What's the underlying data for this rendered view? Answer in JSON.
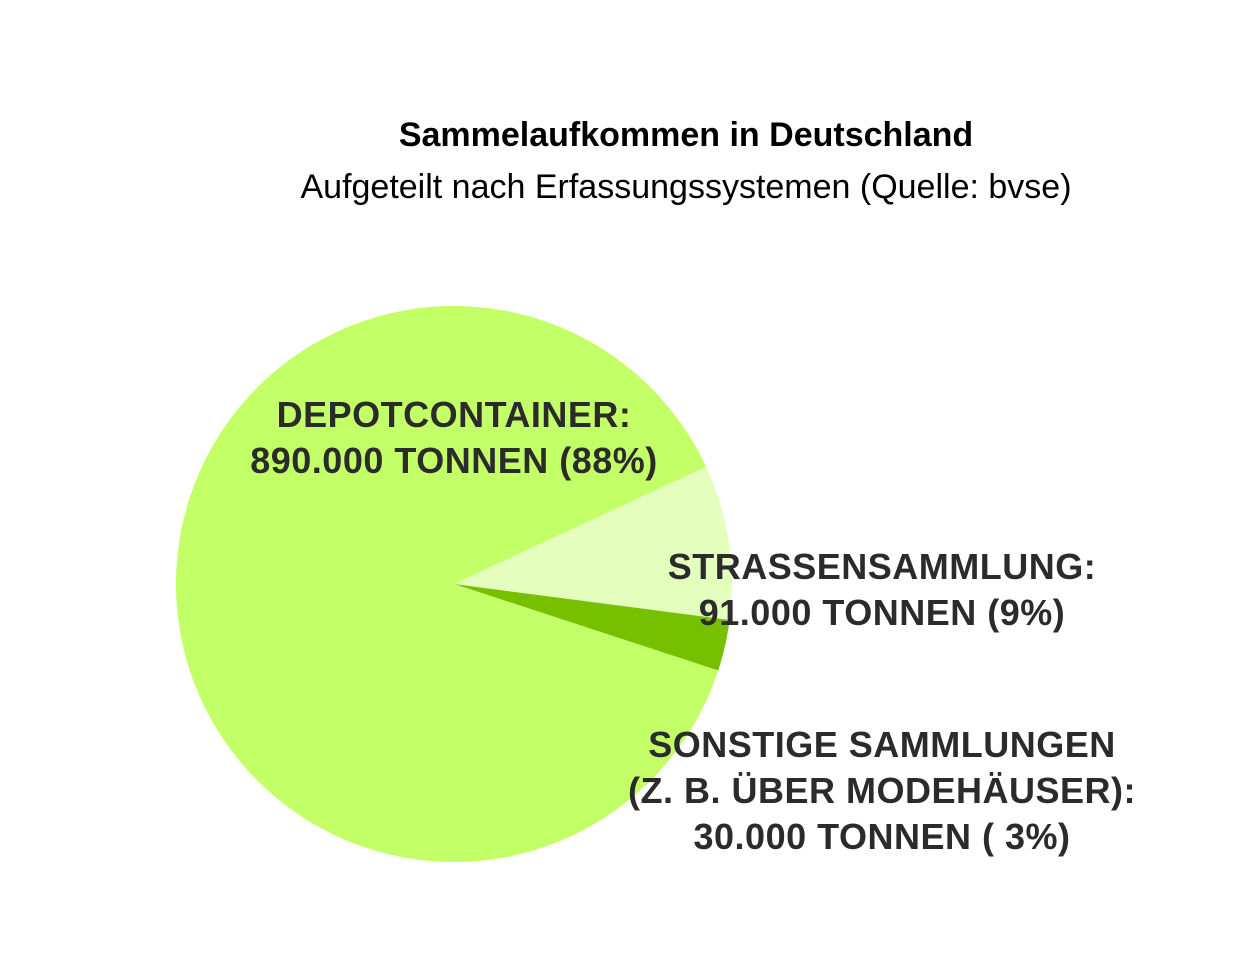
{
  "chart_data": {
    "type": "pie",
    "title": "Sammelaufkommen in Deutschland",
    "subtitle": "Aufgeteilt nach Erfassungssystemen (Quelle: bvse)",
    "slices": [
      {
        "name": "DEPOTCONTAINER:",
        "value": 890000,
        "percent": 88,
        "label_lines": [
          "DEPOTCONTAINER:",
          "890.000 TONNEN (88%)"
        ],
        "color": "#c3ff66"
      },
      {
        "name": "STRASSENSAMMLUNG:",
        "value": 91000,
        "percent": 9,
        "label_lines": [
          "STRASSENSAMMLUNG:",
          "91.000 TONNEN (9%)"
        ],
        "color": "#e4ffbd"
      },
      {
        "name": "SONSTIGE SAMMLUNGEN (Z. B. ÜBER MODEHÄUSER):",
        "value": 30000,
        "percent": 3,
        "label_lines": [
          "SONSTIGE SAMMLUNGEN",
          "(Z. B. ÜBER MODEHÄUSER):",
          "30.000 TONNEN ( 3%)"
        ],
        "color": "#77c000"
      }
    ]
  }
}
